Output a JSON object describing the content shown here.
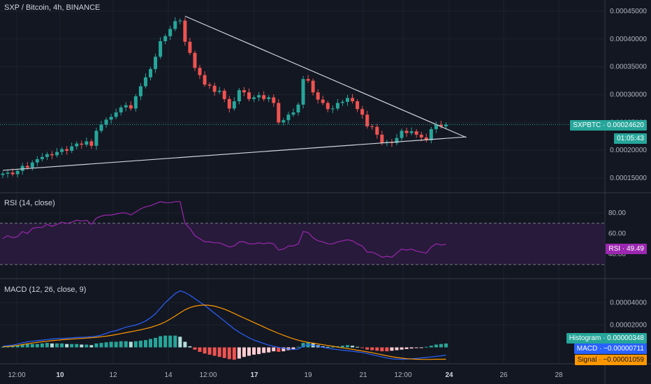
{
  "header": {
    "title": "SXP / Bitcoin, 4h, BINANCE"
  },
  "rsi_pane": {
    "title": "RSI (14, close)",
    "tag": "RSI · 49.49"
  },
  "macd_pane": {
    "title": "MACD (12, 26, close, 9)"
  },
  "price_tags": {
    "symbol": "SXPBTC · 0.00024620",
    "countdown": "01:05:43"
  },
  "macd_tags": {
    "histogram": "Histogram · 0.00000348",
    "macd": "MACD · −0.00000711",
    "signal": "Signal · −0.00001059"
  },
  "colors": {
    "background": "#131722",
    "up": "#26a69a",
    "down": "#ef5350",
    "rsi": "#9c27b0",
    "rsi_band": "#2a1b3d",
    "macd": "#2962ff",
    "signal": "#ff9800",
    "trendline": "#d1d4dc",
    "grid": "#1e222d"
  },
  "chart_data": [
    {
      "type": "candlestick",
      "title": "SXP / Bitcoin, 4h, BINANCE",
      "ylim": [
        0.000125,
        0.00047
      ],
      "y_ticks": [
        "0.00015000",
        "0.00020000",
        "0.00025000",
        "0.00030000",
        "0.00035000",
        "0.00040000",
        "0.00045000"
      ],
      "y_tick_values": [
        0.00015,
        0.0002,
        0.00025,
        0.0003,
        0.00035,
        0.0004,
        0.00045
      ],
      "x_ticks": [
        "12:00",
        "10",
        "12",
        "14",
        "12:00",
        "17",
        "19",
        "21",
        "12:00",
        "24",
        "26",
        "28"
      ],
      "last_price": 0.0002462,
      "ohlc_close": [
        0.000158,
        0.00016,
        0.000157,
        0.000163,
        0.000172,
        0.000169,
        0.000178,
        0.000184,
        0.000188,
        0.000193,
        0.000191,
        0.000197,
        0.000202,
        0.000199,
        0.000207,
        0.000212,
        0.00021,
        0.000216,
        0.000208,
        0.000235,
        0.000246,
        0.000255,
        0.00026,
        0.000268,
        0.000277,
        0.000281,
        0.000275,
        0.000297,
        0.000315,
        0.000331,
        0.000346,
        0.000368,
        0.000396,
        0.000405,
        0.000418,
        0.000432,
        0.000433,
        0.000395,
        0.000375,
        0.000348,
        0.000335,
        0.000318,
        0.000316,
        0.000305,
        0.000307,
        0.000292,
        0.000275,
        0.000288,
        0.000308,
        0.000304,
        0.000292,
        0.000295,
        0.000299,
        0.000292,
        0.000295,
        0.000285,
        0.00025,
        0.000254,
        0.000264,
        0.000268,
        0.000282,
        0.000328,
        0.000325,
        0.000304,
        0.000291,
        0.000285,
        0.000274,
        0.000275,
        0.000285,
        0.000287,
        0.000294,
        0.000288,
        0.000274,
        0.000264,
        0.000243,
        0.000242,
        0.000228,
        0.000213,
        0.000215,
        0.000213,
        0.000222,
        0.000235,
        0.000231,
        0.000234,
        0.000228,
        0.000223,
        0.000218,
        0.000238,
        0.000246,
        0.000243,
        0.000246
      ],
      "trendlines": [
        {
          "from": [
            37,
            0.000441
          ],
          "to": [
            110,
            0.000223
          ]
        },
        {
          "from": [
            0,
            0.000164
          ],
          "to": [
            110,
            0.000224
          ]
        }
      ],
      "last_price_tag": "SXPBTC · 0.00024620"
    },
    {
      "type": "line",
      "title": "RSI (14, close)",
      "ylim": [
        17,
        99
      ],
      "y_ticks": [
        "40.00",
        "60.00",
        "80.00"
      ],
      "y_tick_values": [
        40,
        60,
        80
      ],
      "bands": [
        30,
        70
      ],
      "values": [
        55,
        58,
        56,
        57,
        62,
        60,
        65,
        66,
        66,
        69,
        67,
        69,
        71,
        70,
        71,
        73,
        72,
        73,
        69,
        75,
        77,
        78,
        78,
        79,
        80,
        80,
        78,
        81,
        84,
        86,
        87,
        89,
        91,
        90,
        90,
        91,
        91,
        70,
        65,
        58,
        55,
        52,
        52,
        51,
        51,
        49,
        47,
        48,
        52,
        52,
        50,
        50,
        51,
        50,
        51,
        50,
        44,
        45,
        48,
        48,
        50,
        62,
        61,
        56,
        53,
        52,
        50,
        50,
        52,
        53,
        54,
        53,
        50,
        48,
        42,
        42,
        40,
        37,
        38,
        37,
        41,
        45,
        44,
        45,
        43,
        42,
        41,
        47,
        50,
        49,
        49.49
      ],
      "last_value": 49.49
    },
    {
      "type": "bar+line",
      "title": "MACD (12, 26, close, 9)",
      "ylim": [
        -1.4e-05,
        6.08e-05
      ],
      "y_ticks": [
        "0.00002000",
        "0.00004000"
      ],
      "y_tick_values": [
        2e-05,
        4e-05
      ],
      "series": [
        {
          "name": "Histogram",
          "values": [
            5e-07,
            1e-06,
            1.5e-06,
            2e-06,
            2.5e-06,
            3e-06,
            3e-06,
            3e-06,
            3.5e-06,
            4e-06,
            3.5e-06,
            3.5e-06,
            3.5e-06,
            3e-06,
            3e-06,
            3e-06,
            2.5e-06,
            2.5e-06,
            2e-06,
            3.5e-06,
            4e-06,
            4.5e-06,
            5e-06,
            5e-06,
            5.5e-06,
            5.5e-06,
            5e-06,
            5.5e-06,
            6e-06,
            6.5e-06,
            7.5e-06,
            8.5e-06,
            1e-05,
            1.05e-05,
            1.05e-05,
            1.05e-05,
            9.5e-06,
            5e-06,
            1e-06,
            -2e-06,
            -4e-06,
            -5.5e-06,
            -6.5e-06,
            -7.5e-06,
            -8.5e-06,
            -9.5e-06,
            -1.05e-05,
            -1.1e-05,
            -1e-05,
            -8.5e-06,
            -7.5e-06,
            -6.5e-06,
            -6e-06,
            -5e-06,
            -4.5e-06,
            -3.5e-06,
            -4e-06,
            -3.5e-06,
            -2.5e-06,
            -1.5e-06,
            5e-07,
            4e-06,
            4.5e-06,
            3.5e-06,
            2e-06,
            1e-06,
            5e-07,
            5e-07,
            1e-06,
            1.5e-06,
            2e-06,
            1.5e-06,
            5e-07,
            -5e-07,
            -2e-06,
            -2.5e-06,
            -3e-06,
            -3.5e-06,
            -3.5e-06,
            -3e-06,
            -2.5e-06,
            -2e-06,
            -1.5e-06,
            -1e-06,
            -5e-07,
            -2e-07,
            5e-07,
            1.5e-06,
            2.5e-06,
            3e-06,
            3.48e-06
          ]
        },
        {
          "name": "MACD",
          "values": [
            1e-06,
            1.5e-06,
            2e-06,
            3e-06,
            4e-06,
            5e-06,
            5.5e-06,
            6e-06,
            6.5e-06,
            7e-06,
            7.5e-06,
            7.8e-06,
            8e-06,
            8.2e-06,
            8.5e-06,
            8.8e-06,
            9e-06,
            9.2e-06,
            9.5e-06,
            1e-05,
            1.1e-05,
            1.25e-05,
            1.4e-05,
            1.5e-05,
            1.65e-05,
            1.8e-05,
            1.9e-05,
            2e-05,
            2.15e-05,
            2.35e-05,
            2.65e-05,
            3e-05,
            3.5e-05,
            4e-05,
            4.4e-05,
            4.8e-05,
            5.05e-05,
            4.9e-05,
            4.65e-05,
            4.35e-05,
            4.05e-05,
            3.75e-05,
            3.4e-05,
            3.05e-05,
            2.7e-05,
            2.35e-05,
            2e-05,
            1.65e-05,
            1.35e-05,
            1.1e-05,
            8.5e-06,
            6.5e-06,
            5e-06,
            3.5e-06,
            2e-06,
            1e-06,
            0,
            -8e-07,
            -1.5e-06,
            -2e-06,
            -1.5e-06,
            1e-06,
            2.5e-06,
            2e-06,
            1e-06,
            0,
            -8e-07,
            -1.5e-06,
            -2e-06,
            -2.5e-06,
            -3e-06,
            -3.5e-06,
            -4e-06,
            -4.5e-06,
            -5.5e-06,
            -6.5e-06,
            -7.5e-06,
            -8.5e-06,
            -9.5e-06,
            -1.02e-05,
            -1.05e-05,
            -1.06e-05,
            -1.05e-05,
            -1.02e-05,
            -9.8e-06,
            -9.4e-06,
            -9e-06,
            -8.5e-06,
            -8e-06,
            -7.5e-06,
            -7.11e-06
          ]
        },
        {
          "name": "Signal",
          "values": [
            5e-07,
            8e-07,
            1.2e-06,
            1.8e-06,
            2.5e-06,
            3.2e-06,
            3.9e-06,
            4.5e-06,
            5e-06,
            5.5e-06,
            6e-06,
            6.4e-06,
            6.8e-06,
            7.1e-06,
            7.4e-06,
            7.7e-06,
            8e-06,
            8.3e-06,
            8.6e-06,
            9e-06,
            9.5e-06,
            1e-05,
            1.07e-05,
            1.15e-05,
            1.23e-05,
            1.31e-05,
            1.4e-05,
            1.48e-05,
            1.57e-05,
            1.67e-05,
            1.78e-05,
            1.92e-05,
            2.08e-05,
            2.28e-05,
            2.53e-05,
            2.8e-05,
            3.08e-05,
            3.35e-05,
            3.55e-05,
            3.68e-05,
            3.75e-05,
            3.78e-05,
            3.75e-05,
            3.68e-05,
            3.56e-05,
            3.41e-05,
            3.23e-05,
            3.03e-05,
            2.82e-05,
            2.62e-05,
            2.42e-05,
            2.22e-05,
            2.02e-05,
            1.82e-05,
            1.62e-05,
            1.43e-05,
            1.25e-05,
            1.08e-05,
            9.2e-06,
            7.7e-06,
            6.4e-06,
            5.3e-06,
            4.5e-06,
            3.8e-06,
            3.1e-06,
            2.4e-06,
            1.7e-06,
            1e-06,
            3e-07,
            -4e-07,
            -1.1e-06,
            -1.8e-06,
            -2.5e-06,
            -3.2e-06,
            -4e-06,
            -4.8e-06,
            -5.7e-06,
            -6.6e-06,
            -7.5e-06,
            -8.3e-06,
            -9e-06,
            -9.6e-06,
            -1.01e-05,
            -1.04e-05,
            -1.06e-05,
            -1.07e-05,
            -1.07e-05,
            -1.07e-05,
            -1.06e-05,
            -1.06e-05,
            -1.059e-05
          ]
        }
      ]
    }
  ]
}
